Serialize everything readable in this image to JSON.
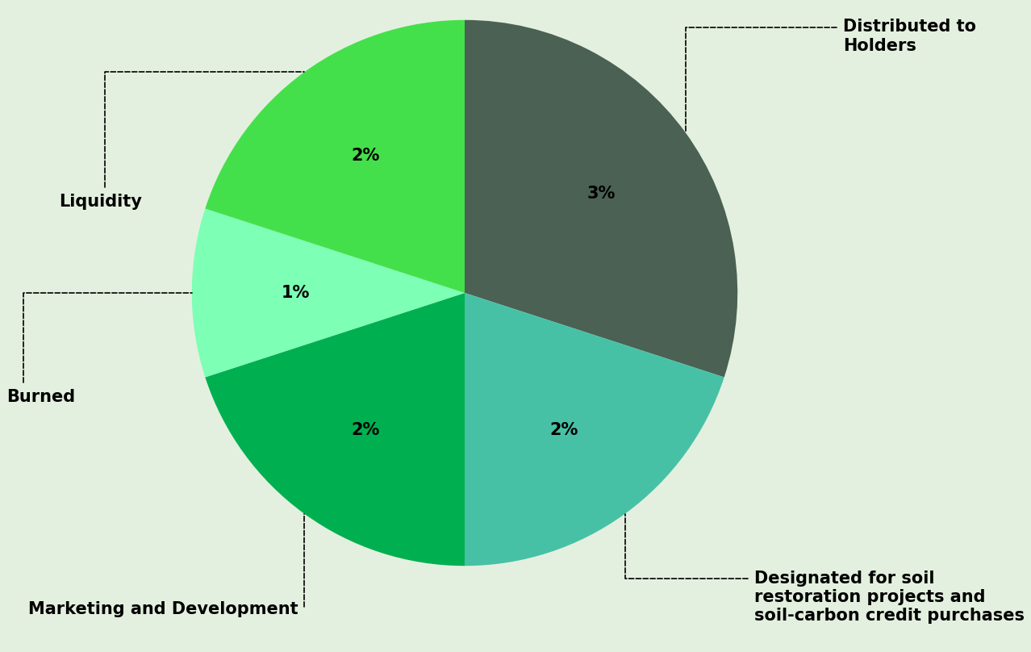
{
  "chart_data": {
    "type": "pie",
    "categories": [
      "Distributed to Holders",
      "Designated for soil restoration projects and soil-carbon credit purchases",
      "Marketing and Development",
      "Burned",
      "Liquidity"
    ],
    "values": [
      3,
      2,
      2,
      1,
      2
    ],
    "value_labels": [
      "3%",
      "2%",
      "2%",
      "1%",
      "2%"
    ],
    "colors": [
      "#4a6153",
      "#47c1a6",
      "#00b050",
      "#7dffb5",
      "#44e04b"
    ],
    "data_labels": true
  }
}
